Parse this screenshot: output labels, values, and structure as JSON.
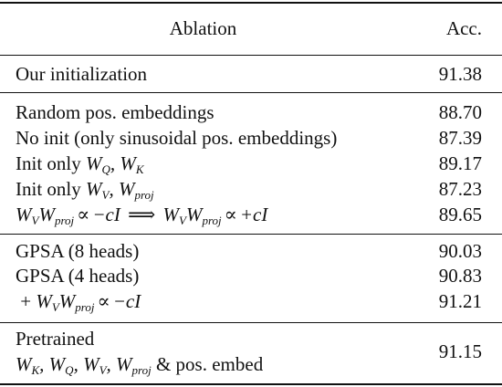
{
  "header": {
    "ablation": "Ablation",
    "acc": "Acc."
  },
  "groups": [
    {
      "rows": [
        {
          "label": "Our initialization",
          "acc": "91.38"
        }
      ]
    },
    {
      "rows": [
        {
          "label": "Random pos. embeddings",
          "acc": "88.70"
        },
        {
          "label": "No init (only sinusoidal pos. embeddings)",
          "acc": "87.39"
        },
        {
          "label": "Init only W_Q, W_K",
          "acc": "89.17"
        },
        {
          "label": "Init only W_V, W_proj",
          "acc": "87.23"
        },
        {
          "label": "W_V W_proj ∝ −cI ⟹ W_V W_proj ∝ +cI",
          "acc": "89.65"
        }
      ]
    },
    {
      "rows": [
        {
          "label": "GPSA (8 heads)",
          "acc": "90.03"
        },
        {
          "label": "GPSA (4 heads)",
          "acc": "90.83"
        },
        {
          "label": "+ W_V W_proj ∝ −cI",
          "acc": "91.21"
        }
      ]
    },
    {
      "rows": [
        {
          "label_line1": "Pretrained",
          "label_line2": "W_K, W_Q, W_V, W_proj & pos. embed",
          "acc": "91.15"
        }
      ]
    }
  ],
  "text": {
    "init_only": "Init only",
    "plus": "+",
    "pos_embed": "& pos. embed"
  }
}
